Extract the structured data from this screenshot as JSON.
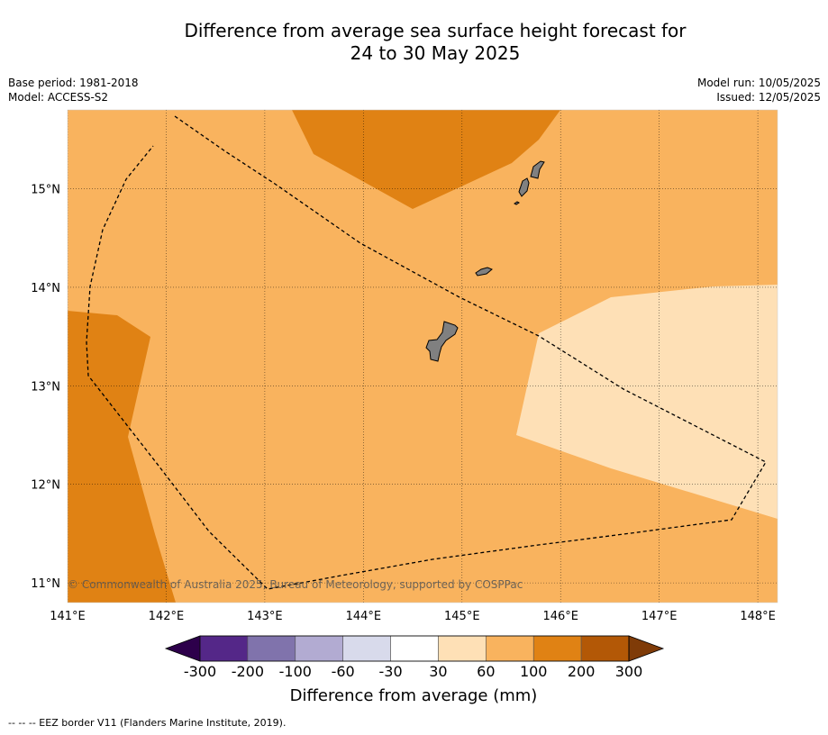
{
  "title": {
    "line1": "Difference from average sea surface height forecast for",
    "line2": "24 to 30 May 2025"
  },
  "meta": {
    "base_period": "Base period: 1981-2018",
    "model": "Model: ACCESS-S2",
    "model_run": "Model run: 10/05/2025",
    "issued": "Issued: 12/05/2025"
  },
  "map": {
    "lon_range": [
      141,
      148.2
    ],
    "lat_range": [
      10.8,
      15.8
    ],
    "lon_ticks": [
      "141°E",
      "142°E",
      "143°E",
      "144°E",
      "145°E",
      "146°E",
      "147°E",
      "148°E"
    ],
    "lat_ticks": [
      "11°N",
      "12°N",
      "13°N",
      "14°N",
      "15°N"
    ],
    "copyright": "© Commonwealth of Australia 2025, Bureau of Meteorology, supported by COSPPac",
    "grid": true,
    "regions": [
      {
        "name": "60 to 100 mm",
        "color": "#f9b35e"
      },
      {
        "name": "100 to 200 mm",
        "color": "#e08214"
      },
      {
        "name": "30 to 60 mm",
        "color": "#fee0b6"
      }
    ],
    "land_color": "#808080"
  },
  "colorbar": {
    "label": "Difference from average (mm)",
    "tick_labels": [
      "-300",
      "-200",
      "-100",
      "-60",
      "-30",
      "30",
      "60",
      "100",
      "200",
      "300"
    ],
    "bins": [
      {
        "range": "< -300",
        "color": "#2d004b"
      },
      {
        "range": "-300 to -200",
        "color": "#542788"
      },
      {
        "range": "-200 to -100",
        "color": "#8073ac"
      },
      {
        "range": "-100 to -60",
        "color": "#b2abd2"
      },
      {
        "range": "-60 to -30",
        "color": "#d8daeb"
      },
      {
        "range": "-30 to 30",
        "color": "#ffffff"
      },
      {
        "range": "30 to 60",
        "color": "#fee0b6"
      },
      {
        "range": "60 to 100",
        "color": "#f9b35e"
      },
      {
        "range": "100 to 200",
        "color": "#e08214"
      },
      {
        "range": "200 to 300",
        "color": "#b35806"
      },
      {
        "range": "> 300",
        "color": "#7f3b08"
      }
    ]
  },
  "footer": "--  --  -- EEZ border V11 (Flanders Marine Institute, 2019)."
}
